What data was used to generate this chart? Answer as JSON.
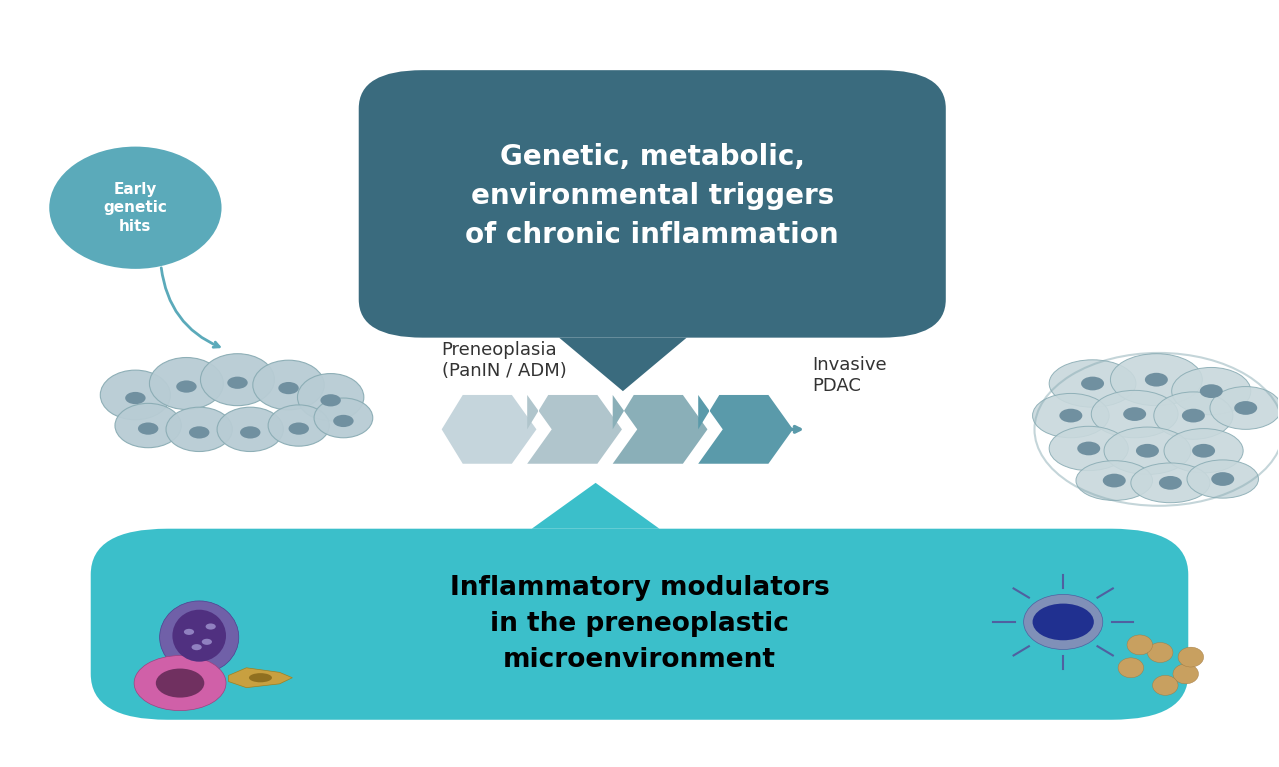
{
  "background_color": "#ffffff",
  "top_bubble_color": "#3a6b7e",
  "top_bubble_text": "Genetic, metabolic,\nenvironmental triggers\nof chronic inflammation",
  "top_bubble_text_color": "#ffffff",
  "bottom_box_color": "#3bbfca",
  "bottom_box_text": "Inflammatory modulators\nin the preneoplastic\nmicroenvironment",
  "bottom_box_text_color": "#000000",
  "preneoplasia_label": "Preneoplasia\n(PanIN / ADM)",
  "invasive_label": "Invasive\nPDAC",
  "early_genetic_hits_text": "Early\ngenetic\nhits",
  "early_genetic_circle_color": "#5baaba",
  "early_genetic_text_color": "#ffffff",
  "arrow_chevron_color_dark": "#5a9aaa",
  "label_color": "#333333",
  "tissue_cell_color": "#b8ccd4",
  "tissue_cell_edge": "#8aacb4",
  "tissue_nucleus_color": "#7090a0",
  "pdac_cell_color": "#c8d8dc",
  "pdac_cell_edge": "#8aacb4",
  "pdac_nucleus_color": "#7090a0"
}
